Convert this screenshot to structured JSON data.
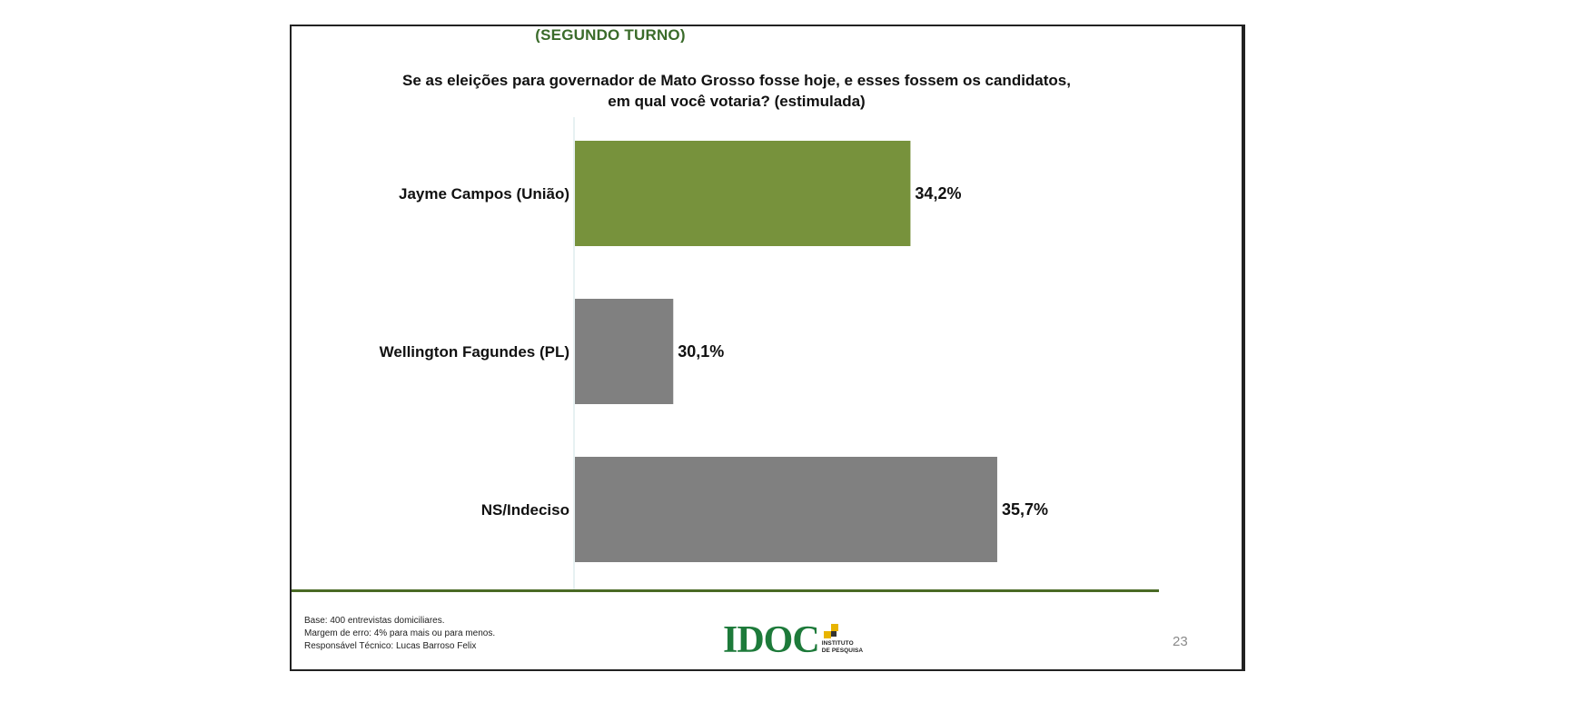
{
  "slide": {
    "section_title": "(SEGUNDO TURNO)",
    "question": "Se as eleições para governador de Mato Grosso fosse hoje, e esses fossem os candidatos, em qual você votaria? (estimulada)",
    "footnotes": [
      "Base: 400 entrevistas domiciliares.",
      "Margem de erro: 4% para mais ou para menos.",
      "Responsável Técnico: Lucas Barroso Felix"
    ],
    "logo": {
      "wordmark": "IDOC",
      "subtitle_line1": "INSTITUTO",
      "subtitle_line2": "DE PESQUISA"
    },
    "page_number": "23"
  },
  "chart_data": {
    "type": "bar",
    "orientation": "horizontal",
    "title": "Se as eleições para governador de Mato Grosso fosse hoje, e esses fossem os candidatos, em qual você votaria? (estimulada)",
    "categories": [
      "Jayme Campos (União)",
      "Wellington Fagundes (PL)",
      "NS/Indeciso"
    ],
    "values": [
      34.2,
      30.1,
      35.7
    ],
    "value_labels": [
      "34,2%",
      "30,1%",
      "35,7%"
    ],
    "colors": [
      "#77923c",
      "#808080",
      "#808080"
    ],
    "xlim": [
      28.4,
      39.5
    ],
    "grid": false,
    "legend": "none"
  }
}
